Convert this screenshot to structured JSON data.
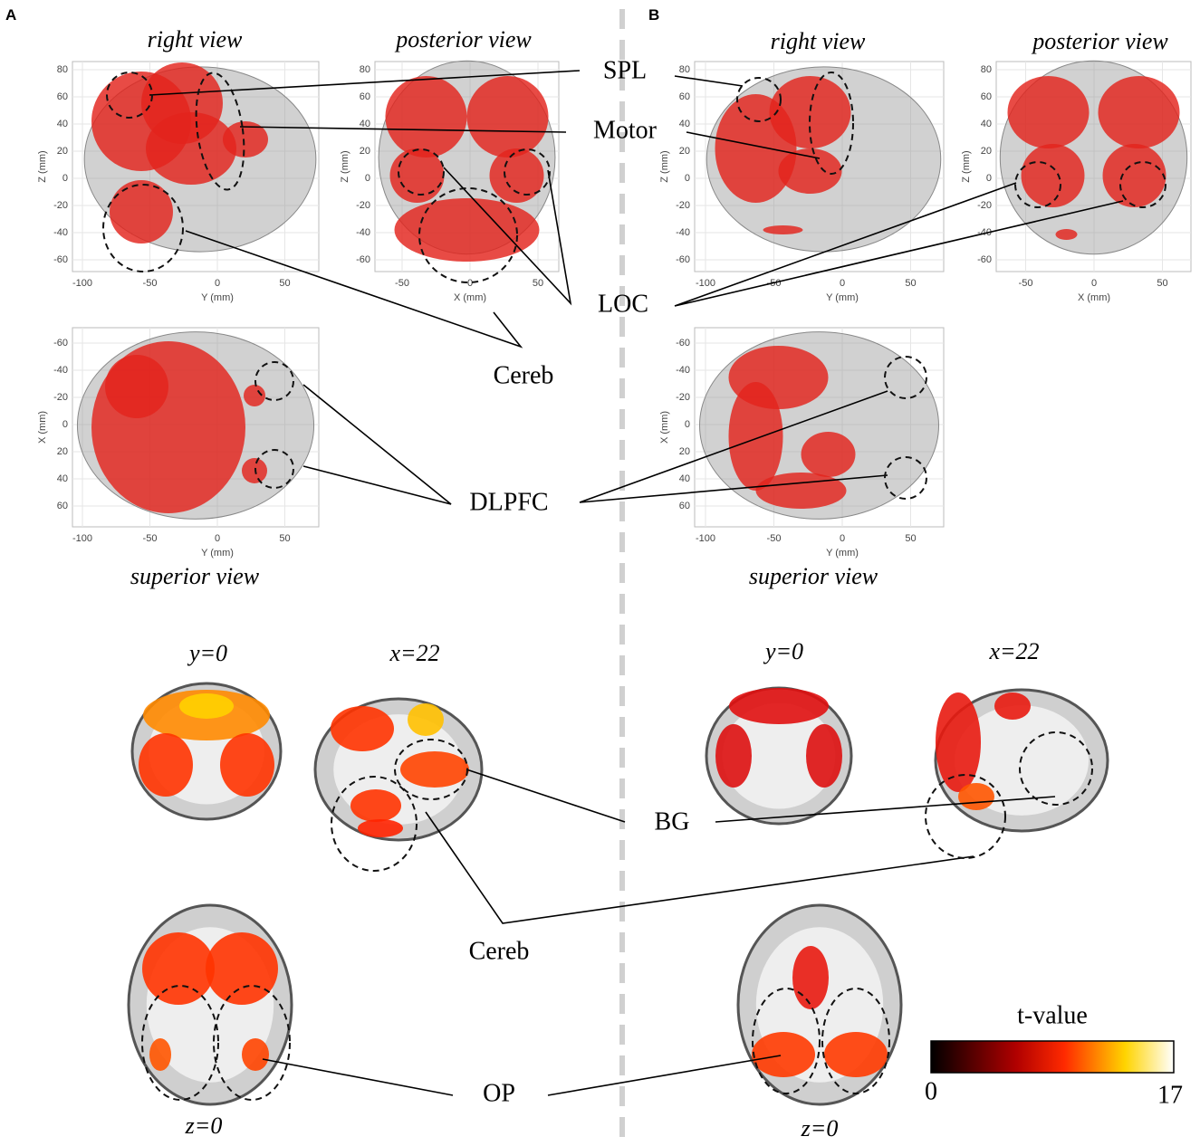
{
  "panels": [
    {
      "label": "A",
      "views": {
        "right": "right view",
        "posterior": "posterior view",
        "superior": "superior view"
      },
      "slices": {
        "coronal": "y=0",
        "sagittal": "x=22",
        "axial": "z=0"
      }
    },
    {
      "label": "B",
      "views": {
        "right": "right view",
        "posterior": "posterior view",
        "superior": "superior view"
      },
      "slices": {
        "coronal": "y=0",
        "sagittal": "x=22",
        "axial": "z=0"
      }
    }
  ],
  "plots": [
    {
      "xlabel": "Y (mm)",
      "ylabel": "Z (mm)",
      "xticks": [
        -100,
        -50,
        0,
        50
      ],
      "yticks": [
        80,
        60,
        40,
        20,
        0,
        -20,
        -40,
        -60
      ]
    },
    {
      "xlabel": "X (mm)",
      "ylabel": "Z (mm)",
      "xticks": [
        -50,
        0,
        50
      ],
      "yticks": [
        80,
        60,
        40,
        20,
        0,
        -20,
        -40,
        -60
      ]
    },
    {
      "xlabel": "Y (mm)",
      "ylabel": "X (mm)",
      "xticks": [
        -100,
        -50,
        0,
        50
      ],
      "yticks": [
        -60,
        -40,
        -20,
        0,
        20,
        40,
        60
      ]
    },
    {
      "xlabel": "Y (mm)",
      "ylabel": "Z (mm)",
      "xticks": [
        -100,
        -50,
        0,
        50
      ],
      "yticks": [
        80,
        60,
        40,
        20,
        0,
        -20,
        -40,
        -60
      ]
    },
    {
      "xlabel": "X (mm)",
      "ylabel": "Z (mm)",
      "xticks": [
        -50,
        0,
        50
      ],
      "yticks": [
        80,
        60,
        40,
        20,
        0,
        -20,
        -40,
        -60
      ]
    },
    {
      "xlabel": "Y (mm)",
      "ylabel": "X (mm)",
      "xticks": [
        -100,
        -50,
        0,
        50
      ],
      "yticks": [
        -60,
        -40,
        -20,
        0,
        20,
        40,
        60
      ]
    }
  ],
  "regions": [
    "SPL",
    "Motor",
    "LOC",
    "Cereb",
    "DLPFC",
    "BG",
    "Cereb",
    "OP"
  ],
  "colorbar": {
    "title": "t-value",
    "min": 0,
    "max": 17
  }
}
